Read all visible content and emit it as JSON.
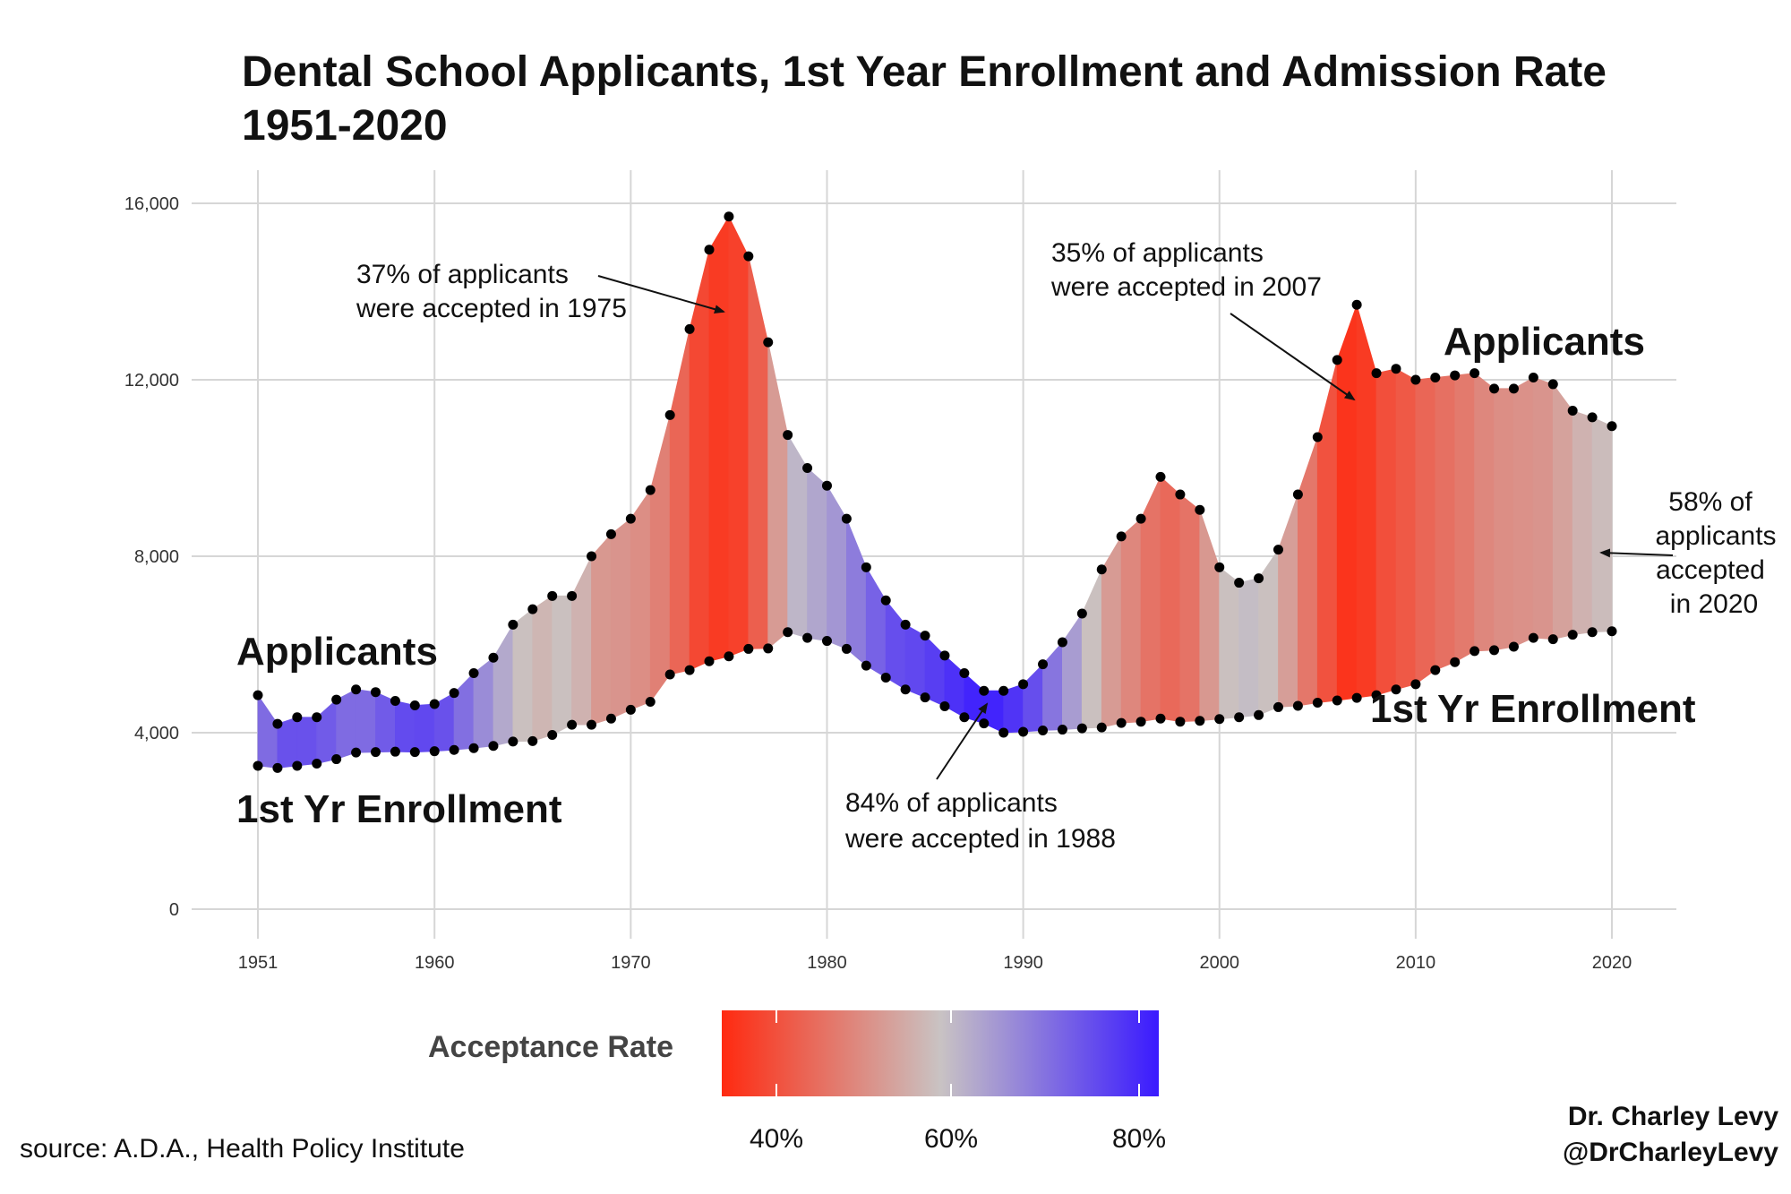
{
  "title": {
    "line1": "Dental School Applicants, 1st Year Enrollment and Admission Rate",
    "line2": "1951-2020"
  },
  "chart_data": {
    "type": "area",
    "xlim": [
      1951,
      2020
    ],
    "ylim": [
      0,
      16000
    ],
    "x_ticks": [
      1951,
      1960,
      1970,
      1980,
      1990,
      2000,
      2010,
      2020
    ],
    "y_ticks": [
      {
        "value": 0,
        "label": "0"
      },
      {
        "value": 4000,
        "label": "4,000"
      },
      {
        "value": 8000,
        "label": "8,000"
      },
      {
        "value": 12000,
        "label": "12,000"
      },
      {
        "value": 16000,
        "label": "16,000"
      }
    ],
    "grid": true,
    "years": [
      1951,
      1952,
      1953,
      1954,
      1955,
      1956,
      1957,
      1958,
      1959,
      1960,
      1961,
      1962,
      1963,
      1964,
      1965,
      1966,
      1967,
      1968,
      1969,
      1970,
      1971,
      1972,
      1973,
      1974,
      1975,
      1976,
      1977,
      1978,
      1979,
      1980,
      1981,
      1982,
      1983,
      1984,
      1985,
      1986,
      1987,
      1988,
      1989,
      1990,
      1991,
      1992,
      1993,
      1994,
      1995,
      1996,
      1997,
      1998,
      1999,
      2000,
      2001,
      2002,
      2003,
      2004,
      2005,
      2006,
      2007,
      2008,
      2009,
      2010,
      2011,
      2012,
      2013,
      2014,
      2015,
      2016,
      2017,
      2018,
      2019,
      2020
    ],
    "series": [
      {
        "name": "Applicants",
        "values": [
          4850,
          4200,
          4350,
          4350,
          4750,
          4980,
          4920,
          4720,
          4620,
          4650,
          4900,
          5350,
          5700,
          6450,
          6800,
          7100,
          7100,
          8000,
          8500,
          8850,
          9500,
          11200,
          13150,
          14950,
          15700,
          14800,
          12850,
          10750,
          10000,
          9600,
          8850,
          7750,
          7000,
          6450,
          6200,
          5750,
          5350,
          4950,
          4950,
          5100,
          5550,
          6050,
          6700,
          7700,
          8450,
          8850,
          9800,
          9400,
          9050,
          7750,
          7400,
          7500,
          8150,
          9400,
          10700,
          12450,
          13700,
          12150,
          12250,
          12000,
          12050,
          12100,
          12150,
          11800,
          11800,
          12050,
          11900,
          11300,
          11150,
          10950
        ]
      },
      {
        "name": "1st Yr Enrollment",
        "values": [
          3250,
          3200,
          3250,
          3300,
          3400,
          3550,
          3560,
          3570,
          3560,
          3580,
          3610,
          3650,
          3700,
          3800,
          3810,
          3950,
          4180,
          4180,
          4320,
          4520,
          4700,
          5320,
          5420,
          5620,
          5730,
          5900,
          5910,
          6280,
          6150,
          6080,
          5900,
          5520,
          5250,
          4980,
          4800,
          4600,
          4350,
          4210,
          4000,
          4020,
          4050,
          4070,
          4100,
          4120,
          4220,
          4250,
          4320,
          4250,
          4270,
          4310,
          4350,
          4400,
          4580,
          4610,
          4680,
          4730,
          4790,
          4850,
          4980,
          5100,
          5420,
          5600,
          5850,
          5870,
          5950,
          6150,
          6120,
          6220,
          6280,
          6300
        ]
      }
    ],
    "acceptance_rate_pct": [
      67,
      76,
      75,
      76,
      72,
      71,
      72,
      76,
      77,
      77,
      74,
      68,
      65,
      59,
      56,
      56,
      59,
      52,
      51,
      51,
      49,
      47,
      41,
      38,
      37,
      40,
      46,
      58,
      62,
      63,
      67,
      71,
      75,
      77,
      77,
      80,
      81,
      84,
      81,
      79,
      73,
      67,
      61,
      54,
      50,
      48,
      44,
      45,
      47,
      56,
      59,
      59,
      56,
      49,
      44,
      38,
      35,
      40,
      41,
      43,
      45,
      46,
      48,
      50,
      50,
      51,
      51,
      55,
      56,
      58
    ],
    "series_labels": {
      "applicants_left": "Applicants",
      "enrollment_left": "1st Yr Enrollment",
      "applicants_right": "Applicants",
      "enrollment_right": "1st Yr Enrollment"
    },
    "annotations": [
      {
        "lines": [
          "37% of applicants",
          "were accepted in 1975"
        ],
        "target_year": 1975
      },
      {
        "lines": [
          "35% of applicants",
          "were accepted in 2007"
        ],
        "target_year": 2007
      },
      {
        "lines": [
          "84% of applicants",
          "were accepted in 1988"
        ],
        "target_year": 1988
      },
      {
        "lines": [
          "58% of",
          "applicants",
          "accepted",
          "in 2020"
        ],
        "target_year": 2020
      }
    ],
    "legend": {
      "title": "Acceptance Rate",
      "ticks": [
        "40%",
        "60%",
        "80%"
      ],
      "position": "bottom",
      "colors": {
        "low": "#ff2a10",
        "mid": "#c9c3c3",
        "high": "#3a1aff"
      }
    }
  },
  "source": "source: A.D.A., Health Policy Institute",
  "credit": {
    "line1": "Dr. Charley Levy",
    "line2": "@DrCharleyLevy"
  }
}
